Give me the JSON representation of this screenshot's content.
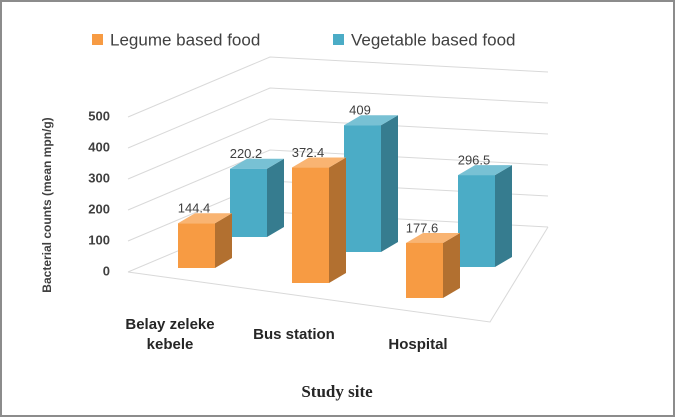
{
  "chart_data": {
    "type": "bar3d",
    "categories": [
      "Belay zeleke kebele",
      "Bus station",
      "Hospital"
    ],
    "series": [
      {
        "name": "Legume based food",
        "color": "#f79b43",
        "values": [
          144.4,
          372.4,
          177.6
        ]
      },
      {
        "name": "Vegetable based food",
        "color": "#4bacc6",
        "values": [
          220.2,
          409,
          296.5
        ]
      }
    ],
    "ylim": [
      0,
      500
    ],
    "yticks": [
      0,
      100,
      200,
      300,
      400,
      500
    ],
    "grid": true,
    "y_label": "Bacterial counts (mean mpn/g)",
    "x_label": "Study site",
    "legend": "top"
  }
}
